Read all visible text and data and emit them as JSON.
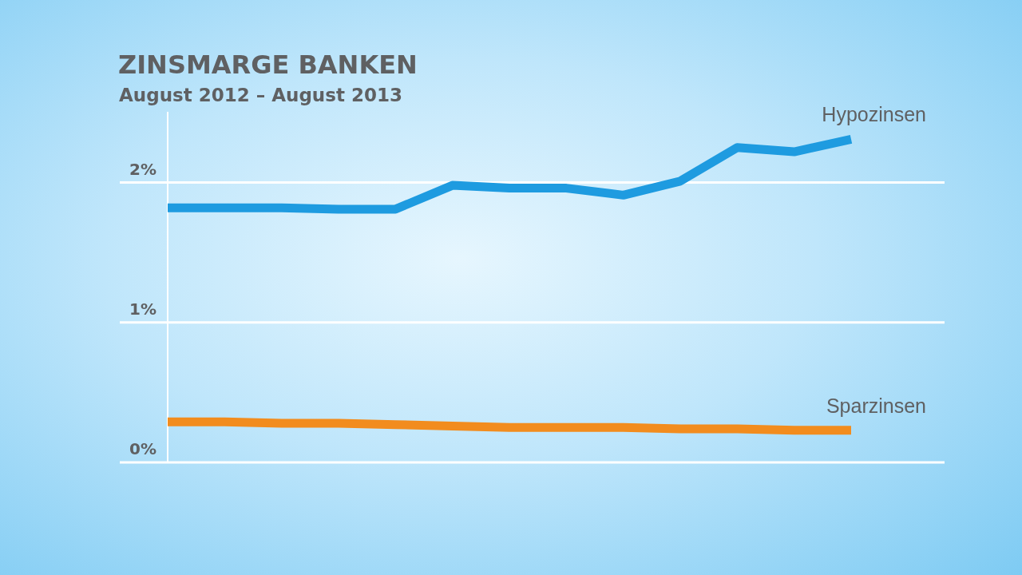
{
  "chart_data": {
    "type": "line",
    "title": "ZINSMARGE BANKEN",
    "subtitle": "August 2012 – August 2013",
    "categories": [
      null,
      null,
      null,
      null,
      null,
      null,
      null,
      null,
      null,
      null,
      null,
      null,
      null
    ],
    "series": [
      {
        "name": "Hypozinsen",
        "color": "#1e9be0",
        "values": [
          1.82,
          1.82,
          1.82,
          1.81,
          1.81,
          1.98,
          1.96,
          1.96,
          1.91,
          2.01,
          2.25,
          2.22,
          2.31
        ]
      },
      {
        "name": "Sparzinsen",
        "color": "#f28c1e",
        "values": [
          0.29,
          0.29,
          0.28,
          0.28,
          0.27,
          0.26,
          0.25,
          0.25,
          0.25,
          0.24,
          0.24,
          0.23,
          0.23
        ]
      }
    ],
    "ylim": [
      0,
      2.5
    ],
    "yticks": [
      {
        "value": 0,
        "label": "0%"
      },
      {
        "value": 1,
        "label": "1%"
      },
      {
        "value": 2,
        "label": "2%"
      }
    ],
    "grid": "y",
    "legend": false,
    "tick_labels": "y",
    "marker": "none",
    "line_style": "solid"
  }
}
